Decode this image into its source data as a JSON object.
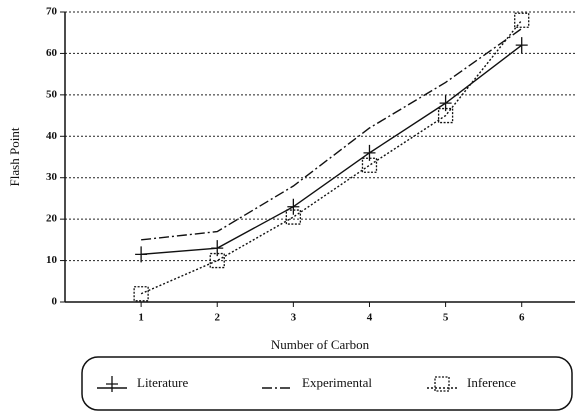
{
  "chart_data": {
    "type": "line",
    "x_label": "Number of Carbon",
    "y_label": "Flash Point",
    "x": [
      1,
      2,
      3,
      4,
      5,
      6
    ],
    "xlim": [
      0,
      6.7
    ],
    "xticks": [
      1,
      2,
      3,
      4,
      5,
      6
    ],
    "ylim": [
      0,
      70
    ],
    "yticks": [
      0,
      10,
      20,
      30,
      40,
      50,
      60,
      70
    ],
    "grid": true,
    "legend": "bottom",
    "series": [
      {
        "name": "Literature",
        "color": "#111111",
        "line_style": "solid",
        "marker": "plus",
        "values": [
          11.5,
          13,
          23,
          36,
          48,
          62
        ]
      },
      {
        "name": "Experimental",
        "color": "#111111",
        "line_style": "dashdot",
        "marker": "none",
        "values": [
          15,
          17,
          28,
          42,
          53,
          66
        ]
      },
      {
        "name": "Inference",
        "color": "#111111",
        "line_style": "dotted",
        "marker": "square",
        "values": [
          2,
          10,
          20.5,
          33,
          45,
          68
        ]
      }
    ]
  }
}
